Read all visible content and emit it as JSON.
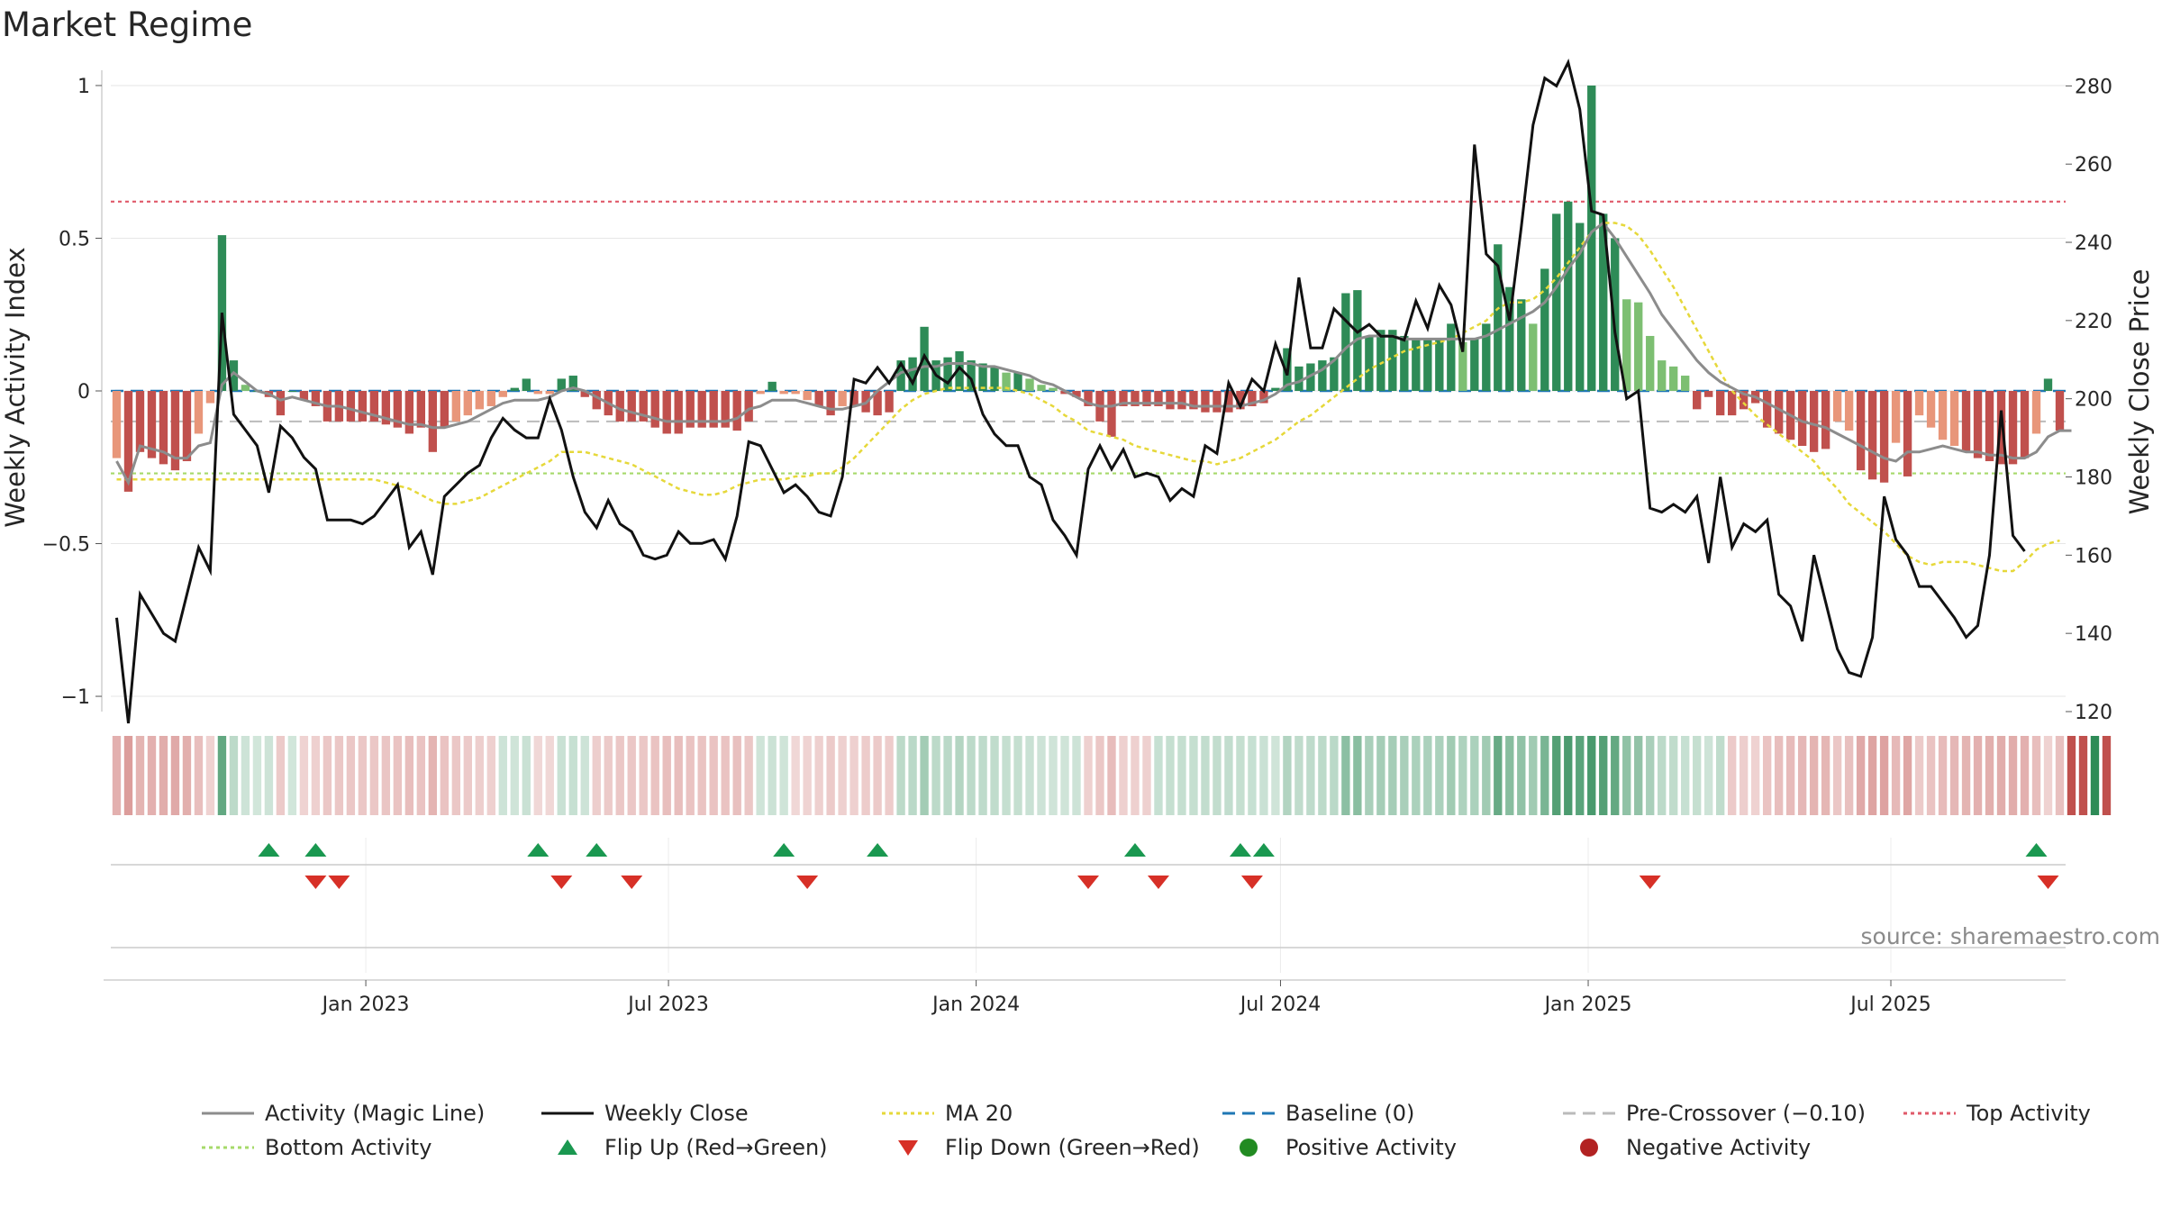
{
  "title": "Market Regime",
  "source": "source: sharemaestro.com",
  "colors": {
    "strong_green": "#2e8b57",
    "light_green": "#7dbf72",
    "strong_red": "#c0504d",
    "light_red": "#e8967a",
    "close": "#111111",
    "magic": "#8c8c8c",
    "ma20": "#e6d83a",
    "baseline": "#1f77b4",
    "pre_crossover": "#bbbbbb",
    "top": "#e05a6a",
    "bottom": "#a6d96a",
    "flip_up": "#1a9850",
    "flip_down": "#d73027"
  },
  "chart_data": {
    "type": "bar",
    "title": "Market Regime",
    "xlabel": "",
    "ylabel": "Weekly Activity Index",
    "y2label": "Weekly Close Price",
    "ylim": [
      -1.05,
      1.05
    ],
    "y2lim": [
      120,
      284
    ],
    "yticks": [
      {
        "v": 1,
        "l": "1"
      },
      {
        "v": 0.5,
        "l": "0.5"
      },
      {
        "v": 0,
        "l": "0"
      },
      {
        "v": -0.5,
        "l": "−0.5"
      },
      {
        "v": -1,
        "l": "−1"
      }
    ],
    "y2ticks": [
      280,
      260,
      240,
      220,
      200,
      180,
      160,
      140,
      120
    ],
    "xticks": [
      {
        "date": "2023-01-01",
        "label": "Jan 2023"
      },
      {
        "date": "2023-07-01",
        "label": "Jul 2023"
      },
      {
        "date": "2024-01-01",
        "label": "Jan 2024"
      },
      {
        "date": "2024-07-01",
        "label": "Jul 2024"
      },
      {
        "date": "2025-01-01",
        "label": "Jan 2025"
      },
      {
        "date": "2025-07-01",
        "label": "Jul 2025"
      }
    ],
    "start_date": "2022-08-05",
    "week_step_days": 7,
    "activity": [
      -0.22,
      -0.33,
      -0.2,
      -0.22,
      -0.24,
      -0.26,
      -0.23,
      -0.14,
      -0.04,
      0.51,
      0.1,
      0.02,
      0.0,
      -0.02,
      -0.08,
      0.0,
      -0.03,
      -0.05,
      -0.1,
      -0.1,
      -0.1,
      -0.1,
      -0.1,
      -0.11,
      -0.12,
      -0.14,
      -0.12,
      -0.2,
      -0.12,
      -0.1,
      -0.08,
      -0.06,
      -0.05,
      -0.02,
      0.01,
      0.04,
      -0.01,
      -0.01,
      0.04,
      0.05,
      -0.02,
      -0.06,
      -0.08,
      -0.1,
      -0.1,
      -0.1,
      -0.12,
      -0.14,
      -0.14,
      -0.12,
      -0.12,
      -0.12,
      -0.12,
      -0.13,
      -0.1,
      -0.01,
      0.03,
      -0.01,
      -0.01,
      -0.03,
      -0.05,
      -0.08,
      -0.05,
      -0.05,
      -0.07,
      -0.08,
      -0.07,
      0.1,
      0.11,
      0.21,
      0.1,
      0.11,
      0.13,
      0.1,
      0.09,
      0.08,
      0.06,
      0.06,
      0.04,
      0.02,
      0.01,
      -0.01,
      -0.02,
      -0.05,
      -0.1,
      -0.15,
      -0.05,
      -0.05,
      -0.05,
      -0.05,
      -0.06,
      -0.06,
      -0.06,
      -0.07,
      -0.07,
      -0.07,
      -0.06,
      -0.05,
      -0.04,
      0.01,
      0.14,
      0.08,
      0.09,
      0.1,
      0.11,
      0.32,
      0.33,
      0.18,
      0.2,
      0.2,
      0.18,
      0.17,
      0.17,
      0.17,
      0.22,
      0.16,
      0.17,
      0.22,
      0.48,
      0.34,
      0.3,
      0.22,
      0.4,
      0.58,
      0.62,
      0.55,
      1.0,
      0.58,
      0.5,
      0.3,
      0.29,
      0.18,
      0.1,
      0.08,
      0.05,
      -0.06,
      -0.02,
      -0.08,
      -0.08,
      -0.06,
      -0.04,
      -0.12,
      -0.14,
      -0.16,
      -0.18,
      -0.2,
      -0.19,
      -0.1,
      -0.13,
      -0.26,
      -0.29,
      -0.3,
      -0.17,
      -0.28,
      -0.08,
      -0.12,
      -0.16,
      -0.18,
      -0.2,
      -0.22,
      -0.23,
      -0.24,
      -0.24,
      -0.22,
      -0.14,
      0.04,
      -0.13
    ],
    "close": [
      144,
      117,
      150,
      145,
      140,
      138,
      150,
      162,
      156,
      222,
      196,
      192,
      188,
      176,
      193,
      190,
      185,
      182,
      169,
      169,
      169,
      168,
      170,
      174,
      178,
      162,
      166,
      155,
      175,
      178,
      181,
      183,
      190,
      195,
      192,
      190,
      190,
      200,
      192,
      180,
      171,
      167,
      174,
      168,
      166,
      160,
      159,
      160,
      166,
      163,
      163,
      164,
      159,
      170,
      189,
      188,
      182,
      176,
      178,
      175,
      171,
      170,
      180,
      205,
      204,
      208,
      204,
      209,
      204,
      211,
      206,
      204,
      208,
      205,
      196,
      191,
      188,
      188,
      180,
      178,
      169,
      165,
      160,
      182,
      188,
      182,
      187,
      180,
      181,
      180,
      174,
      177,
      175,
      188,
      186,
      204,
      198,
      205,
      202,
      214,
      206,
      231,
      213,
      213,
      223,
      220,
      217,
      219,
      216,
      216,
      215,
      225,
      218,
      229,
      224,
      212,
      265,
      237,
      234,
      220,
      244,
      270,
      282,
      280,
      286,
      274,
      248,
      247,
      217,
      200,
      202,
      172,
      171,
      173,
      171,
      175,
      158,
      180,
      162,
      168,
      166,
      169,
      150,
      147,
      138,
      160,
      148,
      136,
      130,
      129,
      139,
      175,
      164,
      160,
      152,
      152,
      148,
      144,
      139,
      142,
      160,
      197,
      165,
      161
    ],
    "magic_line": [
      -0.23,
      -0.3,
      -0.18,
      -0.19,
      -0.2,
      -0.22,
      -0.22,
      -0.18,
      -0.17,
      0.02,
      0.06,
      0.03,
      0.0,
      -0.01,
      -0.03,
      -0.02,
      -0.03,
      -0.04,
      -0.05,
      -0.05,
      -0.06,
      -0.07,
      -0.08,
      -0.09,
      -0.1,
      -0.11,
      -0.11,
      -0.12,
      -0.12,
      -0.11,
      -0.1,
      -0.08,
      -0.06,
      -0.04,
      -0.03,
      -0.03,
      -0.03,
      -0.02,
      0.0,
      0.01,
      0.0,
      -0.02,
      -0.04,
      -0.06,
      -0.07,
      -0.08,
      -0.09,
      -0.1,
      -0.1,
      -0.1,
      -0.1,
      -0.1,
      -0.1,
      -0.09,
      -0.06,
      -0.05,
      -0.03,
      -0.03,
      -0.03,
      -0.04,
      -0.05,
      -0.06,
      -0.06,
      -0.05,
      -0.04,
      0.0,
      0.03,
      0.06,
      0.07,
      0.08,
      0.08,
      0.09,
      0.09,
      0.09,
      0.08,
      0.08,
      0.07,
      0.06,
      0.05,
      0.03,
      0.02,
      0.0,
      -0.02,
      -0.04,
      -0.05,
      -0.05,
      -0.04,
      -0.04,
      -0.04,
      -0.04,
      -0.04,
      -0.04,
      -0.05,
      -0.05,
      -0.05,
      -0.05,
      -0.05,
      -0.04,
      -0.03,
      -0.01,
      0.02,
      0.03,
      0.05,
      0.07,
      0.1,
      0.14,
      0.17,
      0.18,
      0.18,
      0.18,
      0.17,
      0.17,
      0.17,
      0.17,
      0.17,
      0.17,
      0.17,
      0.18,
      0.2,
      0.22,
      0.24,
      0.26,
      0.29,
      0.34,
      0.4,
      0.45,
      0.52,
      0.55,
      0.5,
      0.44,
      0.38,
      0.32,
      0.25,
      0.2,
      0.15,
      0.1,
      0.06,
      0.03,
      0.01,
      -0.01,
      -0.02,
      -0.04,
      -0.06,
      -0.08,
      -0.1,
      -0.11,
      -0.12,
      -0.14,
      -0.16,
      -0.18,
      -0.2,
      -0.22,
      -0.23,
      -0.2,
      -0.2,
      -0.19,
      -0.18,
      -0.19,
      -0.2,
      -0.2,
      -0.21,
      -0.21,
      -0.22,
      -0.22,
      -0.2,
      -0.15,
      -0.13,
      -0.13
    ],
    "ma20": [
      -0.29,
      -0.29,
      -0.29,
      -0.29,
      -0.29,
      -0.29,
      -0.29,
      -0.29,
      -0.29,
      -0.29,
      -0.29,
      -0.29,
      -0.29,
      -0.29,
      -0.29,
      -0.29,
      -0.29,
      -0.29,
      -0.29,
      -0.29,
      -0.29,
      -0.29,
      -0.29,
      -0.3,
      -0.31,
      -0.32,
      -0.34,
      -0.36,
      -0.37,
      -0.37,
      -0.36,
      -0.35,
      -0.33,
      -0.31,
      -0.29,
      -0.27,
      -0.25,
      -0.23,
      -0.2,
      -0.2,
      -0.2,
      -0.21,
      -0.22,
      -0.23,
      -0.24,
      -0.26,
      -0.28,
      -0.3,
      -0.32,
      -0.33,
      -0.34,
      -0.34,
      -0.33,
      -0.31,
      -0.3,
      -0.29,
      -0.29,
      -0.29,
      -0.28,
      -0.28,
      -0.27,
      -0.27,
      -0.25,
      -0.22,
      -0.18,
      -0.14,
      -0.1,
      -0.06,
      -0.03,
      -0.01,
      0.0,
      0.01,
      0.01,
      0.01,
      0.01,
      0.01,
      0.01,
      0.0,
      -0.01,
      -0.03,
      -0.05,
      -0.08,
      -0.1,
      -0.13,
      -0.14,
      -0.15,
      -0.16,
      -0.18,
      -0.19,
      -0.2,
      -0.21,
      -0.22,
      -0.23,
      -0.23,
      -0.24,
      -0.23,
      -0.22,
      -0.2,
      -0.18,
      -0.16,
      -0.13,
      -0.1,
      -0.08,
      -0.05,
      -0.02,
      0.01,
      0.04,
      0.07,
      0.09,
      0.11,
      0.13,
      0.14,
      0.15,
      0.16,
      0.17,
      0.19,
      0.21,
      0.23,
      0.27,
      0.29,
      0.29,
      0.3,
      0.33,
      0.37,
      0.42,
      0.47,
      0.52,
      0.55,
      0.55,
      0.54,
      0.51,
      0.46,
      0.4,
      0.34,
      0.27,
      0.2,
      0.13,
      0.06,
      0.0,
      -0.04,
      -0.08,
      -0.11,
      -0.14,
      -0.17,
      -0.2,
      -0.23,
      -0.28,
      -0.32,
      -0.37,
      -0.4,
      -0.43,
      -0.46,
      -0.5,
      -0.54,
      -0.56,
      -0.57,
      -0.56,
      -0.56,
      -0.56,
      -0.57,
      -0.58,
      -0.59,
      -0.59,
      -0.56,
      -0.52,
      -0.5,
      -0.49
    ],
    "regime": [
      -2,
      -2,
      -2,
      -2,
      -2,
      -2,
      -2,
      -2,
      -2,
      2,
      1,
      1,
      1,
      1,
      -1,
      1,
      -1,
      -1,
      -1,
      -1,
      -1,
      -1,
      -1,
      -1,
      -1,
      -1,
      -1,
      -1,
      -1,
      -1,
      -1,
      -1,
      -1,
      1,
      1,
      1,
      -1,
      -1,
      1,
      1,
      1,
      -1,
      -1,
      -1,
      -1,
      -1,
      -1,
      -1,
      -1,
      -1,
      -1,
      -1,
      -1,
      -1,
      -1,
      1,
      1,
      1,
      -1,
      -1,
      -1,
      -1,
      -1,
      -1,
      -1,
      -1,
      -1,
      1,
      1,
      1,
      1,
      1,
      1,
      1,
      1,
      1,
      1,
      1,
      1,
      1,
      1,
      1,
      1,
      -1,
      -1,
      -1,
      -1,
      -1,
      -1,
      1,
      1,
      1,
      1,
      1,
      1,
      1,
      1,
      1,
      1,
      1,
      1,
      1,
      1,
      1,
      1,
      1,
      1,
      1,
      1,
      1,
      1,
      1,
      1,
      1,
      1,
      1,
      1,
      1,
      1,
      1,
      1,
      1,
      1,
      1,
      1,
      1,
      1,
      1,
      1,
      1,
      1,
      1,
      1,
      1,
      1,
      1,
      1,
      1,
      -1,
      -1,
      -1,
      -1,
      -1,
      -1,
      -1,
      -1,
      -1,
      -1,
      -1,
      -1,
      -1,
      -1,
      -1,
      -1,
      -1,
      -1,
      -1,
      -1,
      -1,
      -1,
      -1,
      -1,
      -1,
      -1,
      -1,
      -1,
      -1,
      -1,
      -1,
      1,
      -1
    ],
    "thresholds": {
      "baseline": 0,
      "pre_crossover": -0.1,
      "top": 0.62,
      "bottom": -0.27
    },
    "flip_up_dates": [
      "2022-11-04",
      "2022-12-02",
      "2023-04-14",
      "2023-05-19",
      "2023-09-08",
      "2023-11-03",
      "2024-04-05",
      "2024-06-07",
      "2024-06-21",
      "2025-09-26"
    ],
    "flip_down_dates": [
      "2022-12-02",
      "2022-12-16",
      "2023-04-28",
      "2023-06-09",
      "2023-09-22",
      "2024-03-08",
      "2024-04-19",
      "2024-06-14",
      "2025-02-07",
      "2025-10-03"
    ],
    "legend": [
      {
        "label": "Activity (Magic Line)",
        "kind": "line",
        "color": "#8c8c8c",
        "dash": ""
      },
      {
        "label": "Weekly Close",
        "kind": "line",
        "color": "#111111",
        "dash": ""
      },
      {
        "label": "MA 20",
        "kind": "line",
        "color": "#e6d83a",
        "dash": "4,4"
      },
      {
        "label": "Baseline (0)",
        "kind": "line",
        "color": "#1f77b4",
        "dash": "14,8"
      },
      {
        "label": "Pre-Crossover (−0.10)",
        "kind": "line",
        "color": "#bbbbbb",
        "dash": "14,8"
      },
      {
        "label": "Top Activity",
        "kind": "line",
        "color": "#e05a6a",
        "dash": "4,4"
      },
      {
        "label": "Bottom Activity",
        "kind": "line",
        "color": "#a6d96a",
        "dash": "4,4"
      },
      {
        "label": "Flip Up (Red→Green)",
        "kind": "tri-up",
        "color": "#1a9850",
        "dash": ""
      },
      {
        "label": "Flip Down (Green→Red)",
        "kind": "tri-down",
        "color": "#d73027",
        "dash": ""
      },
      {
        "label": "Positive Activity",
        "kind": "dot",
        "color": "#228b22",
        "dash": ""
      },
      {
        "label": "Negative Activity",
        "kind": "dot",
        "color": "#b22222",
        "dash": ""
      }
    ]
  }
}
